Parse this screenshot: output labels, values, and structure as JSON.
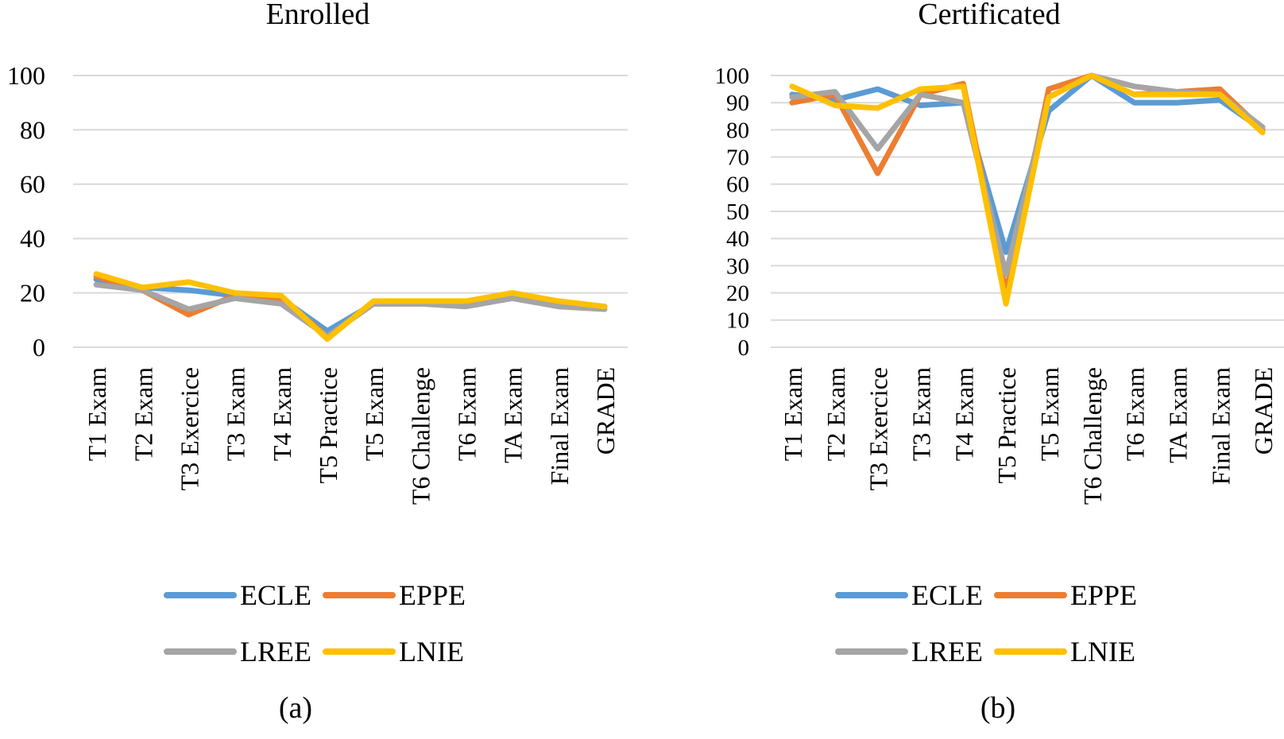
{
  "chart_data": [
    {
      "type": "line",
      "title": "Enrolled",
      "panel_label": "(a)",
      "categories": [
        "T1 Exam",
        "T2 Exam",
        "T3 Exercice",
        "T3 Exam",
        "T4 Exam",
        "T5 Practice",
        "T5 Exam",
        "T6 Challenge",
        "T6 Exam",
        "TA Exam",
        "Final Exam",
        "GRADE"
      ],
      "ylim": [
        0,
        100
      ],
      "yticks": [
        0,
        20,
        40,
        60,
        80,
        100
      ],
      "grid": true,
      "legend": "bottom",
      "series": [
        {
          "name": "ECLE",
          "color": "#5B9BD5",
          "values": [
            25,
            22,
            21,
            19,
            18,
            6,
            16,
            16,
            16,
            19,
            16,
            15
          ]
        },
        {
          "name": "EPPE",
          "color": "#ED7D31",
          "values": [
            26,
            21,
            12,
            19,
            18,
            4,
            16,
            16,
            16,
            19,
            16,
            15
          ]
        },
        {
          "name": "LREE",
          "color": "#A5A5A5",
          "values": [
            23,
            21,
            14,
            18,
            16,
            4,
            16,
            16,
            15,
            18,
            15,
            14
          ]
        },
        {
          "name": "LNIE",
          "color": "#FFC000",
          "values": [
            27,
            22,
            24,
            20,
            19,
            3,
            17,
            17,
            17,
            20,
            17,
            15
          ]
        }
      ]
    },
    {
      "type": "line",
      "title": "Certificated",
      "panel_label": "(b)",
      "categories": [
        "T1 Exam",
        "T2 Exam",
        "T3 Exercice",
        "T3 Exam",
        "T4 Exam",
        "T5 Practice",
        "T5 Exam",
        "T6 Challenge",
        "T6 Exam",
        "TA Exam",
        "Final Exam",
        "GRADE"
      ],
      "ylim": [
        0,
        100
      ],
      "yticks": [
        0,
        10,
        20,
        30,
        40,
        50,
        60,
        70,
        80,
        90,
        100
      ],
      "grid": true,
      "legend": "bottom",
      "series": [
        {
          "name": "ECLE",
          "color": "#5B9BD5",
          "values": [
            93,
            91,
            95,
            89,
            90,
            35,
            87,
            100,
            90,
            90,
            91,
            80
          ]
        },
        {
          "name": "EPPE",
          "color": "#ED7D31",
          "values": [
            90,
            93,
            64,
            93,
            97,
            20,
            95,
            100,
            93,
            94,
            95,
            80
          ]
        },
        {
          "name": "LREE",
          "color": "#A5A5A5",
          "values": [
            92,
            94,
            73,
            93,
            90,
            27,
            92,
            100,
            96,
            94,
            93,
            81
          ]
        },
        {
          "name": "LNIE",
          "color": "#FFC000",
          "values": [
            96,
            89,
            88,
            95,
            96,
            16,
            92,
            100,
            93,
            93,
            93,
            79
          ]
        }
      ]
    }
  ]
}
